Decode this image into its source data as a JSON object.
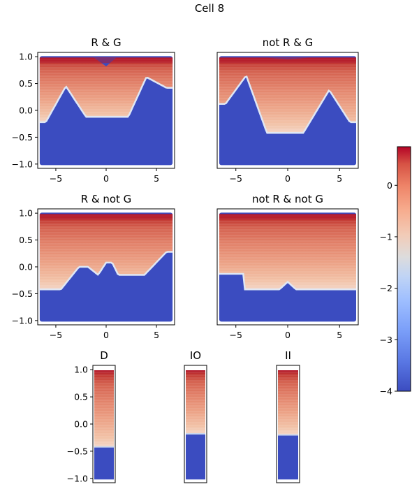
{
  "title": "Cell 8",
  "chart_data": [
    {
      "type": "heatmap",
      "title": "R & G",
      "xlim": [
        -6.8,
        6.8
      ],
      "ylim": [
        -1.08,
        1.08
      ],
      "xticks": [
        -5,
        0,
        5
      ],
      "yticks": [
        1.0,
        0.5,
        0.0,
        -0.5,
        -1.0
      ],
      "ytick_labels": [
        "1.0",
        "0.5",
        "0.0",
        "−0.5",
        "−1.0"
      ],
      "show_yticks": true,
      "show_xticks": true,
      "boundary": {
        "x": [
          -6.6,
          -6.0,
          -4.0,
          -2.0,
          -1.8,
          2.2,
          4.0,
          6.0,
          6.6
        ],
        "y": [
          -0.22,
          -0.22,
          0.45,
          -0.12,
          -0.12,
          -0.12,
          0.62,
          0.42,
          0.42
        ]
      },
      "top": {
        "x": [
          -6.6,
          -1.2,
          0.0,
          1.0,
          6.6
        ],
        "y": [
          0.98,
          0.98,
          0.82,
          0.98,
          0.98
        ]
      }
    },
    {
      "type": "heatmap",
      "title": "not R & G",
      "xlim": [
        -6.8,
        6.8
      ],
      "ylim": [
        -1.08,
        1.08
      ],
      "xticks": [
        -5,
        0,
        5
      ],
      "show_yticks": false,
      "show_xticks": true,
      "boundary": {
        "x": [
          -6.6,
          -6.0,
          -4.0,
          -2.0,
          -1.8,
          1.5,
          4.0,
          6.0,
          6.6
        ],
        "y": [
          0.12,
          0.12,
          0.65,
          -0.42,
          -0.42,
          -0.42,
          0.38,
          -0.22,
          -0.22
        ]
      },
      "top": {
        "x": [
          -6.6,
          -2.0,
          0.0,
          2.0,
          6.6
        ],
        "y": [
          0.98,
          0.98,
          0.95,
          0.98,
          0.98
        ]
      }
    },
    {
      "type": "heatmap",
      "title": "R & not G",
      "xlim": [
        -6.8,
        6.8
      ],
      "ylim": [
        -1.08,
        1.08
      ],
      "xticks": [
        -5,
        0,
        5
      ],
      "yticks": [
        1.0,
        0.5,
        0.0,
        -0.5,
        -1.0
      ],
      "ytick_labels": [
        "1.0",
        "0.5",
        "0.0",
        "−0.5",
        "−1.0"
      ],
      "show_yticks": true,
      "show_xticks": true,
      "boundary": {
        "x": [
          -6.6,
          -4.5,
          -2.7,
          -1.8,
          -0.8,
          0.0,
          0.6,
          1.2,
          3.8,
          6.0,
          6.6
        ],
        "y": [
          -0.42,
          -0.42,
          0.0,
          0.0,
          -0.15,
          0.08,
          0.08,
          -0.15,
          -0.15,
          0.28,
          0.28
        ]
      },
      "top": {
        "x": [
          -6.6,
          6.6
        ],
        "y": [
          0.98,
          0.98
        ]
      }
    },
    {
      "type": "heatmap",
      "title": "not R & not G",
      "xlim": [
        -6.8,
        6.8
      ],
      "ylim": [
        -1.08,
        1.08
      ],
      "xticks": [
        -5,
        0,
        5
      ],
      "show_yticks": false,
      "show_xticks": true,
      "boundary": {
        "x": [
          -6.6,
          -4.2,
          -4.2,
          -0.8,
          0.0,
          0.8,
          6.6
        ],
        "y": [
          -0.13,
          -0.13,
          -0.42,
          -0.42,
          -0.28,
          -0.42,
          -0.42
        ]
      },
      "top": {
        "x": [
          -6.6,
          6.6
        ],
        "y": [
          0.98,
          0.98
        ]
      }
    },
    {
      "type": "heatmap",
      "title": "D",
      "ylim": [
        -1.08,
        1.08
      ],
      "yticks": [
        1.0,
        0.5,
        0.0,
        -0.5,
        -1.0
      ],
      "ytick_labels": [
        "1.0",
        "0.5",
        "0.0",
        "−0.5",
        "−1.0"
      ],
      "show_yticks": true,
      "show_xticks": false,
      "threshold": -0.42
    },
    {
      "type": "heatmap",
      "title": "IO",
      "ylim": [
        -1.08,
        1.08
      ],
      "show_yticks": false,
      "show_xticks": false,
      "threshold": -0.18
    },
    {
      "type": "heatmap",
      "title": "II",
      "ylim": [
        -1.08,
        1.08
      ],
      "show_yticks": false,
      "show_xticks": false,
      "threshold": -0.2
    }
  ],
  "colorbar": {
    "vmin": -4,
    "vmax": 0.75,
    "ticks": [
      0,
      -1,
      -2,
      -3,
      -4
    ],
    "tick_labels": [
      "0",
      "−1",
      "−2",
      "−3",
      "−4"
    ],
    "colormap": "coolwarm"
  }
}
